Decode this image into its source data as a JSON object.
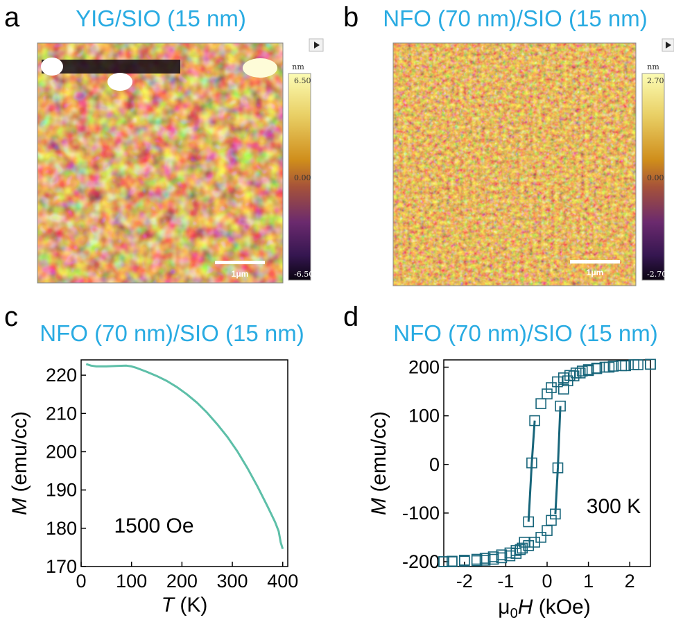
{
  "colors": {
    "title": "#29abe2",
    "curve_c": "#5dbfa8",
    "marker_d": "#17657a",
    "afm_low": "#1a0a24",
    "afm_mid": "#c98a1a",
    "afm_high": "#fbfba6"
  },
  "panels": {
    "a": {
      "letter": "a",
      "title": "YIG/SIO (15 nm)",
      "unit": "nm",
      "cb_max": "6.50",
      "cb_mid": "0.00",
      "cb_min": "-6.50",
      "scalebar": "1μm",
      "expand_icon": "play-triangle-icon"
    },
    "b": {
      "letter": "b",
      "title": "NFO (70 nm)/SIO (15 nm)",
      "unit": "nm",
      "cb_max": "2.70",
      "cb_mid": "0.00",
      "cb_min": "-2.70",
      "scalebar": "1μm",
      "expand_icon": "play-triangle-icon"
    },
    "c": {
      "letter": "c",
      "title": "NFO (70 nm)/SIO (15 nm)",
      "annotation": "1500 Oe"
    },
    "d": {
      "letter": "d",
      "title": "NFO (70 nm)/SIO (15 nm)",
      "annotation": "300 K"
    }
  },
  "chart_data": [
    {
      "panel": "c",
      "type": "line",
      "title": "NFO (70 nm)/SIO (15 nm)",
      "xlabel_var": "T",
      "xlabel_unit": " (K)",
      "ylabel_var": "M",
      "ylabel_unit": " (emu/cc)",
      "xlim": [
        0,
        410
      ],
      "ylim": [
        170,
        224
      ],
      "xticks": [
        0,
        100,
        200,
        300,
        400
      ],
      "yticks": [
        170,
        180,
        190,
        200,
        210,
        220
      ],
      "annotation": "1500 Oe",
      "series": [
        {
          "x": [
            10,
            20,
            30,
            50,
            70,
            90,
            100,
            110,
            130,
            150,
            170,
            190,
            210,
            230,
            250,
            270,
            290,
            310,
            330,
            350,
            370,
            385,
            392,
            396,
            400
          ],
          "y": [
            222.9,
            222.5,
            222.3,
            222.3,
            222.4,
            222.5,
            222.3,
            221.9,
            220.9,
            219.8,
            218.5,
            216.9,
            215.0,
            212.8,
            210.2,
            207.2,
            203.9,
            200.1,
            195.7,
            190.9,
            185.7,
            181.6,
            179.2,
            176.3,
            174.6
          ]
        }
      ]
    },
    {
      "panel": "d",
      "type": "scatter",
      "title": "NFO (70 nm)/SIO (15 nm)",
      "xlabel_prefix": "μ",
      "xlabel_sub": "0",
      "xlabel_var": "H",
      "xlabel_unit": " (kOe)",
      "ylabel_var": "M",
      "ylabel_unit": " (emu/cc)",
      "xlim": [
        -2.5,
        2.5
      ],
      "ylim": [
        -210,
        215
      ],
      "xticks": [
        -2,
        -1,
        0,
        1,
        2
      ],
      "yticks": [
        -200,
        -100,
        0,
        100,
        200
      ],
      "annotation": "300 K",
      "descending": {
        "x": [
          2.5,
          2.2,
          1.9,
          1.6,
          1.4,
          1.2,
          1.0,
          0.85,
          0.7,
          0.55,
          0.4,
          0.25,
          0.1,
          0.0,
          -0.15,
          -0.3,
          -0.37,
          -0.45,
          -0.55,
          -0.65,
          -0.75,
          -0.9,
          -1.1,
          -1.3,
          -1.5,
          -1.7,
          -2.0,
          -2.3,
          -2.5
        ],
        "y": [
          206,
          205,
          203,
          202,
          200,
          198,
          195,
          192,
          188,
          183,
          178,
          170,
          158,
          145,
          125,
          90,
          3,
          -118,
          -160,
          -175,
          -183,
          -188,
          -192,
          -195,
          -197,
          -198,
          -199,
          -200,
          -200
        ]
      },
      "ascending": {
        "x": [
          -2.5,
          -2.3,
          -2.0,
          -1.7,
          -1.5,
          -1.3,
          -1.1,
          -0.9,
          -0.75,
          -0.6,
          -0.45,
          -0.3,
          -0.15,
          0.0,
          0.1,
          0.2,
          0.26,
          0.32,
          0.4,
          0.5,
          0.65,
          0.8,
          1.0,
          1.2,
          1.5,
          1.8,
          2.1,
          2.5
        ],
        "y": [
          -200,
          -199,
          -197,
          -195,
          -193,
          -190,
          -186,
          -182,
          -177,
          -172,
          -167,
          -160,
          -150,
          -136,
          -115,
          -102,
          -7,
          120,
          155,
          172,
          182,
          188,
          193,
          197,
          200,
          203,
          205,
          206
        ]
      }
    }
  ]
}
